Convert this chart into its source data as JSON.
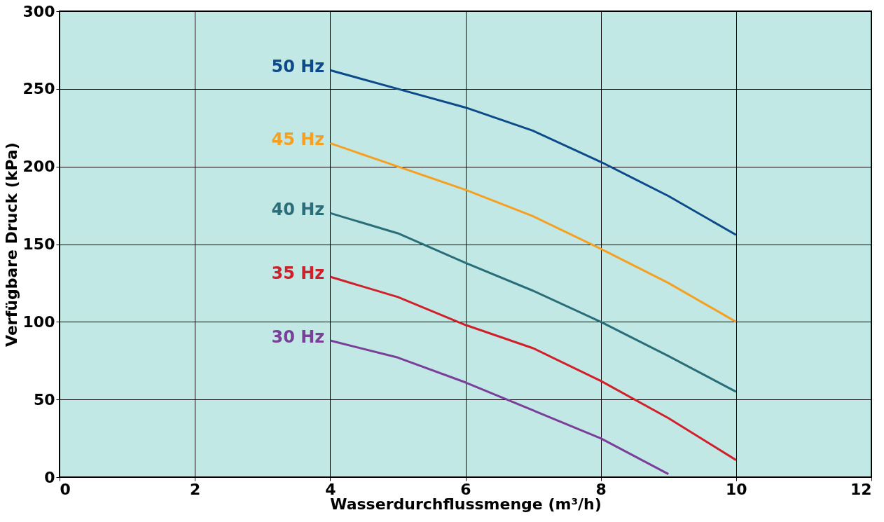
{
  "chart_data": {
    "type": "line",
    "xlabel": "Wasserdurchflussmenge (m³/h)",
    "ylabel": "Verfügbare Druck  (kPa)",
    "xlim": [
      0,
      12
    ],
    "xticks": [
      0,
      2,
      4,
      6,
      8,
      10,
      12
    ],
    "ylim": [
      0,
      300
    ],
    "yticks": [
      0,
      50,
      100,
      150,
      200,
      250,
      300
    ],
    "grid": true,
    "legend": false,
    "marker": "none",
    "line_style": "solid",
    "series": [
      {
        "name": "50 Hz",
        "color": "#0d4a8a",
        "x": [
          4,
          5,
          6,
          7,
          8,
          9,
          10
        ],
        "values": [
          262,
          250,
          238,
          223,
          203,
          181,
          156
        ]
      },
      {
        "name": "45 Hz",
        "color": "#f5a020",
        "x": [
          4,
          5,
          6,
          7,
          8,
          9,
          10
        ],
        "values": [
          215,
          200,
          185,
          168,
          147,
          125,
          100
        ]
      },
      {
        "name": "40 Hz",
        "color": "#2a6e7a",
        "x": [
          4,
          5,
          6,
          7,
          8,
          9,
          10
        ],
        "values": [
          170,
          157,
          138,
          120,
          100,
          78,
          55
        ]
      },
      {
        "name": "35 Hz",
        "color": "#d0202a",
        "x": [
          4,
          5,
          6,
          7,
          8,
          9,
          10
        ],
        "values": [
          129,
          116,
          98,
          83,
          62,
          38,
          11
        ]
      },
      {
        "name": "30 Hz",
        "color": "#7a3f98",
        "x": [
          4,
          5,
          6,
          7,
          8,
          9
        ],
        "values": [
          88,
          77,
          61,
          43,
          25,
          2
        ]
      }
    ]
  }
}
